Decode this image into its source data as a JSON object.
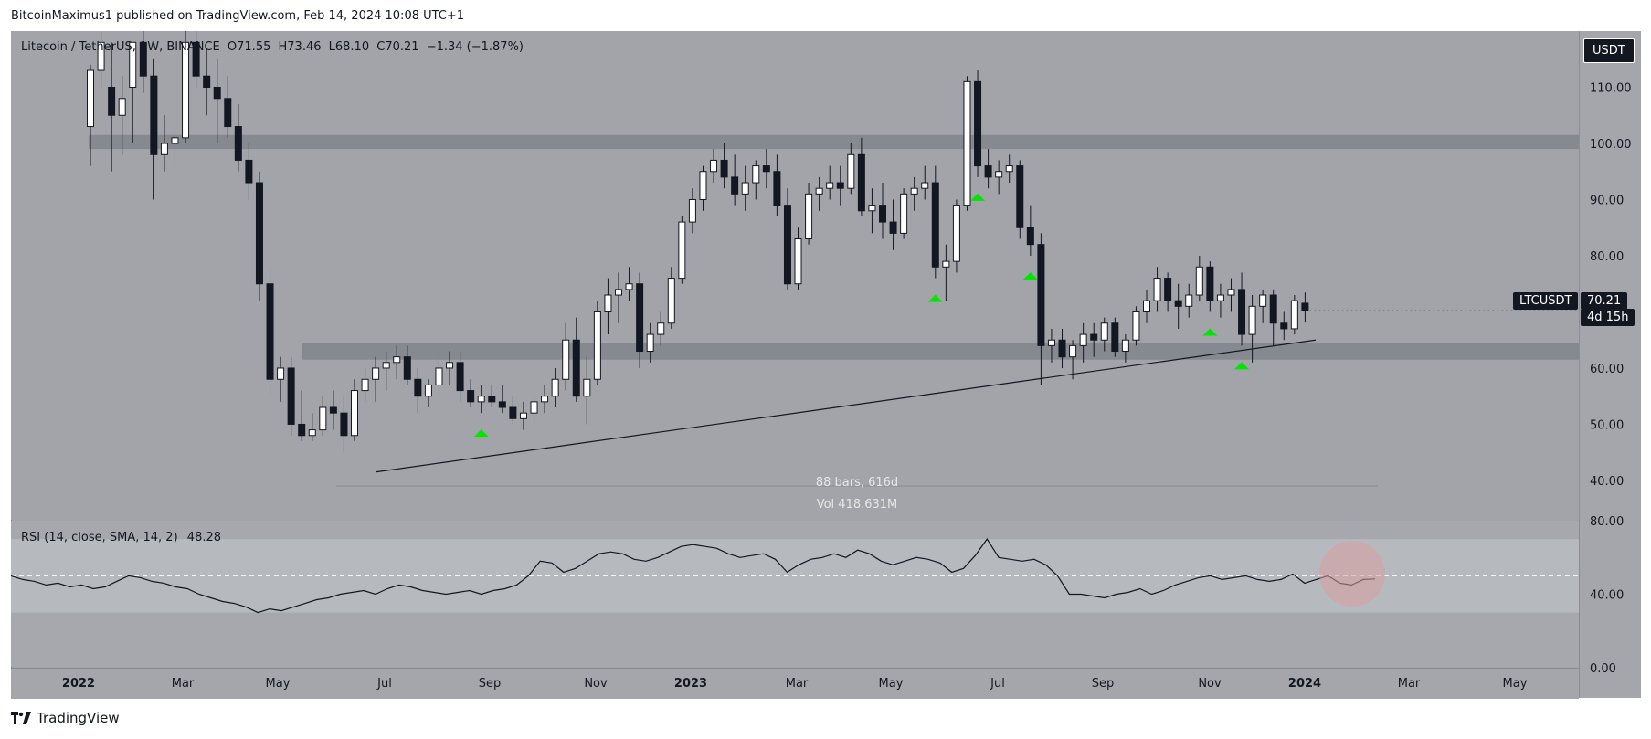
{
  "header": {
    "text": "BitcoinMaximus1 published on TradingView.com, Feb 14, 2024 10:08 UTC+1"
  },
  "legend": {
    "symbol": "Litecoin / TetherUS, 1W, BINANCE",
    "open": "O71.55",
    "high": "H73.46",
    "low": "L68.10",
    "close": "C70.21",
    "change": "−1.34 (−1.87%)"
  },
  "rsi_legend": {
    "label": "RSI (14, close, SMA, 14, 2)",
    "value": "48.28"
  },
  "badges": {
    "currency": "USDT",
    "ticker": "LTCUSDT",
    "price": "70.21",
    "countdown": "4d 15h"
  },
  "measure": {
    "bars": "88 bars, 616d",
    "vol": "Vol 418.631M"
  },
  "footer": {
    "brand": "TradingView"
  },
  "colors": {
    "up": "#ffffff",
    "down": "#131722",
    "arrow": "#00e600",
    "zone": "#7f8288",
    "circle": "#d9a0a0"
  },
  "chart_data": [
    {
      "type": "candlestick",
      "title": "Litecoin / TetherUS, 1W, BINANCE",
      "ylabel": "USDT",
      "ylim": [
        33,
        120
      ],
      "y_ticks": [
        40,
        50,
        60,
        70,
        80,
        90,
        100,
        110
      ],
      "y_tick_labels": [
        "40.00",
        "50.00",
        "60.00",
        "70.00",
        "80.00",
        "90.00",
        "100.00",
        "110.00"
      ],
      "x_tick_labels": [
        "2022",
        "Mar",
        "May",
        "Jul",
        "Sep",
        "Nov",
        "2023",
        "Mar",
        "May",
        "Jul",
        "Sep",
        "Nov",
        "2024",
        "Mar",
        "May"
      ],
      "zones": [
        {
          "from": 99,
          "to": 101.5
        },
        {
          "from": 61.5,
          "to": 64.5
        }
      ],
      "trendline": {
        "from_week": 27,
        "from_value": 41.5,
        "to_week": 116,
        "to_value": 65
      },
      "support_arrows_weeks": [
        37,
        80,
        84,
        89,
        106,
        109
      ],
      "candles": [
        [
          103.0,
          114.0,
          96.0,
          113.0
        ],
        [
          113.0,
          120.0,
          110.0,
          118.0
        ],
        [
          110.0,
          118.0,
          95.0,
          105.0
        ],
        [
          105.0,
          112.0,
          98.0,
          108.0
        ],
        [
          110.0,
          118.0,
          100.0,
          118.0
        ],
        [
          118.0,
          122.0,
          109.0,
          112.0
        ],
        [
          112.0,
          115.0,
          90.0,
          98.0
        ],
        [
          98.0,
          105.0,
          95.0,
          100.0
        ],
        [
          100.0,
          102.0,
          96.0,
          101.0
        ],
        [
          101.0,
          120.0,
          100.0,
          118.0
        ],
        [
          118.0,
          122.0,
          110.0,
          112.0
        ],
        [
          112.0,
          117.0,
          105.0,
          110.0
        ],
        [
          110.0,
          115.0,
          100.0,
          108.0
        ],
        [
          108.0,
          112.0,
          101.0,
          103.0
        ],
        [
          103.0,
          107.0,
          95.0,
          97.0
        ],
        [
          97.0,
          100.0,
          90.0,
          93.0
        ],
        [
          93.0,
          95.0,
          72.0,
          75.0
        ],
        [
          75.0,
          78.0,
          55.0,
          58.0
        ],
        [
          58.0,
          62.0,
          54.0,
          60.0
        ],
        [
          60.0,
          62.0,
          48.0,
          50.0
        ],
        [
          50.0,
          56.0,
          47.0,
          48.0
        ],
        [
          48.0,
          52.0,
          47.0,
          49.0
        ],
        [
          49.0,
          55.0,
          48.0,
          53.0
        ],
        [
          53.0,
          56.0,
          49.0,
          52.0
        ],
        [
          52.0,
          55.0,
          45.0,
          48.0
        ],
        [
          48.0,
          58.0,
          47.0,
          56.0
        ],
        [
          56.0,
          60.0,
          54.0,
          58.0
        ],
        [
          58.0,
          62.0,
          54.0,
          60.0
        ],
        [
          60.0,
          63.0,
          56.0,
          61.0
        ],
        [
          61.0,
          64.0,
          58.0,
          62.0
        ],
        [
          62.0,
          64.0,
          57.0,
          58.0
        ],
        [
          58.0,
          60.0,
          52.0,
          55.0
        ],
        [
          55.0,
          58.0,
          53.0,
          57.0
        ],
        [
          57.0,
          62.0,
          55.0,
          60.0
        ],
        [
          60.0,
          63.0,
          57.0,
          61.0
        ],
        [
          61.0,
          63.0,
          54.0,
          56.0
        ],
        [
          56.0,
          58.0,
          53.0,
          54.0
        ],
        [
          54.0,
          57.0,
          52.0,
          55.0
        ],
        [
          55.0,
          57.0,
          53.0,
          54.0
        ],
        [
          54.0,
          57.0,
          52.0,
          53.0
        ],
        [
          53.0,
          55.0,
          50.0,
          51.0
        ],
        [
          51.0,
          54.0,
          49.0,
          52.0
        ],
        [
          52.0,
          55.0,
          50.0,
          54.0
        ],
        [
          54.0,
          57.0,
          52.0,
          55.0
        ],
        [
          55.0,
          60.0,
          53.0,
          58.0
        ],
        [
          58.0,
          68.0,
          56.0,
          65.0
        ],
        [
          65.0,
          69.0,
          54.0,
          55.0
        ],
        [
          55.0,
          62.0,
          50.0,
          58.0
        ],
        [
          58.0,
          72.0,
          57.0,
          70.0
        ],
        [
          70.0,
          76.0,
          66.0,
          73.0
        ],
        [
          73.0,
          77.0,
          68.0,
          74.0
        ],
        [
          74.0,
          78.0,
          72.0,
          75.0
        ],
        [
          75.0,
          77.0,
          60.0,
          63.0
        ],
        [
          63.0,
          68.0,
          61.0,
          66.0
        ],
        [
          66.0,
          70.0,
          64.0,
          68.0
        ],
        [
          68.0,
          78.0,
          67.0,
          76.0
        ],
        [
          76.0,
          87.0,
          75.0,
          86.0
        ],
        [
          86.0,
          92.0,
          84.0,
          90.0
        ],
        [
          90.0,
          96.0,
          88.0,
          95.0
        ],
        [
          95.0,
          99.0,
          93.0,
          97.0
        ],
        [
          97.0,
          100.0,
          92.0,
          94.0
        ],
        [
          94.0,
          98.0,
          89.0,
          91.0
        ],
        [
          91.0,
          96.0,
          88.0,
          93.0
        ],
        [
          93.0,
          97.0,
          90.0,
          96.0
        ],
        [
          96.0,
          99.0,
          92.0,
          95.0
        ],
        [
          95.0,
          98.0,
          87.0,
          89.0
        ],
        [
          89.0,
          92.0,
          74.0,
          75.0
        ],
        [
          75.0,
          85.0,
          74.0,
          83.0
        ],
        [
          83.0,
          93.0,
          82.0,
          91.0
        ],
        [
          91.0,
          94.0,
          88.0,
          92.0
        ],
        [
          92.0,
          96.0,
          90.0,
          93.0
        ],
        [
          93.0,
          96.0,
          89.0,
          92.0
        ],
        [
          92.0,
          100.0,
          91.0,
          98.0
        ],
        [
          98.0,
          101.0,
          87.0,
          88.0
        ],
        [
          88.0,
          92.0,
          84.0,
          89.0
        ],
        [
          89.0,
          93.0,
          83.0,
          86.0
        ],
        [
          86.0,
          90.0,
          81.0,
          84.0
        ],
        [
          84.0,
          92.0,
          83.0,
          91.0
        ],
        [
          91.0,
          94.0,
          88.0,
          92.0
        ],
        [
          92.0,
          96.0,
          90.0,
          93.0
        ],
        [
          93.0,
          96.0,
          76.0,
          78.0
        ],
        [
          78.0,
          82.0,
          72.0,
          79.0
        ],
        [
          79.0,
          90.0,
          77.0,
          89.0
        ],
        [
          89.0,
          112.0,
          88.0,
          111.0
        ],
        [
          111.0,
          113.0,
          94.0,
          96.0
        ],
        [
          96.0,
          99.0,
          92.0,
          94.0
        ],
        [
          94.0,
          97.0,
          91.0,
          95.0
        ],
        [
          95.0,
          98.0,
          93.0,
          96.0
        ],
        [
          96.0,
          97.0,
          83.0,
          85.0
        ],
        [
          85.0,
          89.0,
          80.0,
          82.0
        ],
        [
          82.0,
          84.0,
          57.0,
          64.0
        ],
        [
          64.0,
          67.0,
          61.0,
          65.0
        ],
        [
          65.0,
          67.0,
          60.0,
          62.0
        ],
        [
          62.0,
          65.0,
          58.0,
          64.0
        ],
        [
          64.0,
          68.0,
          61.0,
          66.0
        ],
        [
          66.0,
          68.0,
          62.0,
          65.0
        ],
        [
          65.0,
          69.0,
          63.0,
          68.0
        ],
        [
          68.0,
          69.0,
          62.0,
          63.0
        ],
        [
          63.0,
          66.0,
          61.0,
          65.0
        ],
        [
          65.0,
          71.0,
          64.0,
          70.0
        ],
        [
          70.0,
          74.0,
          68.0,
          72.0
        ],
        [
          72.0,
          78.0,
          70.0,
          76.0
        ],
        [
          76.0,
          77.0,
          70.0,
          72.0
        ],
        [
          72.0,
          75.0,
          67.0,
          71.0
        ],
        [
          71.0,
          75.0,
          69.0,
          73.0
        ],
        [
          73.0,
          80.0,
          72.0,
          78.0
        ],
        [
          78.0,
          79.0,
          70.0,
          72.0
        ],
        [
          72.0,
          75.0,
          69.0,
          73.0
        ],
        [
          73.0,
          76.0,
          70.0,
          74.0
        ],
        [
          74.0,
          77.0,
          64.0,
          66.0
        ],
        [
          66.0,
          73.0,
          61.0,
          71.0
        ],
        [
          71.0,
          74.0,
          68.0,
          73.0
        ],
        [
          73.0,
          74.0,
          64.0,
          68.0
        ],
        [
          68.0,
          70.0,
          65.0,
          67.0
        ],
        [
          67.0,
          73.0,
          66.0,
          72.0
        ],
        [
          71.55,
          73.46,
          68.1,
          70.21
        ]
      ]
    },
    {
      "type": "line",
      "title": "RSI (14, close, SMA, 14, 2)",
      "ylim": [
        0,
        80
      ],
      "y_ticks": [
        0,
        40,
        80
      ],
      "y_tick_labels": [
        "0.00",
        "40.00",
        "80.00"
      ],
      "band": [
        30,
        70
      ],
      "midline": 50,
      "last_value": 48.28,
      "values": [
        50,
        48,
        47,
        45,
        46,
        44,
        45,
        43,
        44,
        47,
        50,
        49,
        47,
        46,
        44,
        43,
        40,
        38,
        36,
        35,
        33,
        30,
        32,
        31,
        33,
        35,
        37,
        38,
        40,
        41,
        42,
        40,
        43,
        45,
        44,
        42,
        41,
        40,
        41,
        42,
        40,
        42,
        43,
        45,
        50,
        58,
        57,
        52,
        54,
        58,
        62,
        63,
        62,
        59,
        58,
        60,
        63,
        66,
        67,
        66,
        65,
        62,
        60,
        61,
        62,
        59,
        52,
        56,
        59,
        60,
        62,
        60,
        64,
        62,
        58,
        56,
        58,
        60,
        59,
        57,
        52,
        54,
        61,
        70,
        60,
        59,
        58,
        59,
        56,
        50,
        40,
        40,
        39,
        38,
        40,
        41,
        43,
        40,
        42,
        45,
        47,
        49,
        50,
        48,
        49,
        50,
        48,
        47,
        48,
        51,
        46,
        48,
        50,
        46,
        45,
        48,
        48.28
      ]
    }
  ]
}
